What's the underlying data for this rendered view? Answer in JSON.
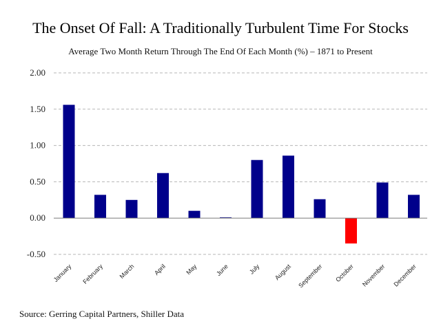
{
  "chart_data": {
    "type": "bar",
    "title": "The Onset Of Fall: A Traditionally Turbulent Time For Stocks",
    "subtitle": "Average Two Month Return Through The End Of Each Month (%) – 1871 to Present",
    "source": "Source: Gerring Capital Partners, Shiller Data",
    "categories": [
      "January",
      "February",
      "March",
      "April",
      "May",
      "June",
      "July",
      "August",
      "September",
      "October",
      "November",
      "December"
    ],
    "values": [
      1.56,
      0.32,
      0.25,
      0.62,
      0.1,
      0.01,
      0.8,
      0.86,
      0.26,
      -0.35,
      0.49,
      0.32
    ],
    "ylim": [
      -0.5,
      2.0
    ],
    "y_ticks": [
      "2.00",
      "1.50",
      "1.00",
      "0.50",
      "0.00",
      "-0.50"
    ],
    "grid": true,
    "colors": {
      "positive": "#00008b",
      "negative": "#ff0000",
      "grid": "#b5b5b5"
    }
  }
}
